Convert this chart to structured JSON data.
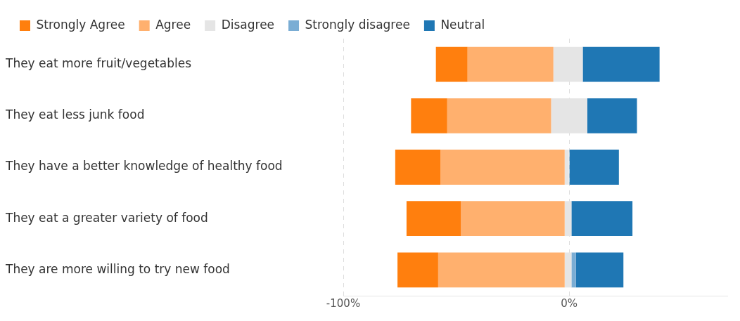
{
  "chart_data": {
    "type": "bar",
    "orientation": "horizontal",
    "categories": [
      "They eat more fruit/vegetables",
      "They eat less junk food",
      "They have a better knowledge of healthy food",
      "They eat a greater variety of food",
      "They are more willing to try new food"
    ],
    "series": [
      {
        "name": "Strongly Agree",
        "color": "#ff7f0e",
        "base": [
          -59,
          -70,
          -77,
          -72,
          -76
        ],
        "values": [
          14,
          16,
          20,
          24,
          18
        ]
      },
      {
        "name": "Agree",
        "color": "#ffb06e",
        "base": [
          -45,
          -54,
          -57,
          -48,
          -58
        ],
        "values": [
          38,
          46,
          55,
          46,
          56
        ]
      },
      {
        "name": "Disagree",
        "color": "#e5e5e5",
        "base": [
          -7,
          -8,
          -2,
          -2,
          -2
        ],
        "values": [
          13,
          16,
          2,
          3,
          3
        ]
      },
      {
        "name": "Strongly disagree",
        "color": "#7aadd4",
        "base": [
          null,
          null,
          null,
          null,
          1
        ],
        "values": [
          null,
          null,
          null,
          null,
          2
        ]
      },
      {
        "name": "Neutral",
        "color": "#1f77b4",
        "base": [
          6,
          8,
          0,
          1,
          3
        ],
        "values": [
          34,
          22,
          22,
          27,
          21
        ]
      }
    ],
    "xlim": [
      -100,
      70
    ],
    "xticks": [
      {
        "value": -100,
        "label": "-100%"
      },
      {
        "value": 0,
        "label": "0%"
      }
    ],
    "grid": "x",
    "legend": "top left"
  }
}
